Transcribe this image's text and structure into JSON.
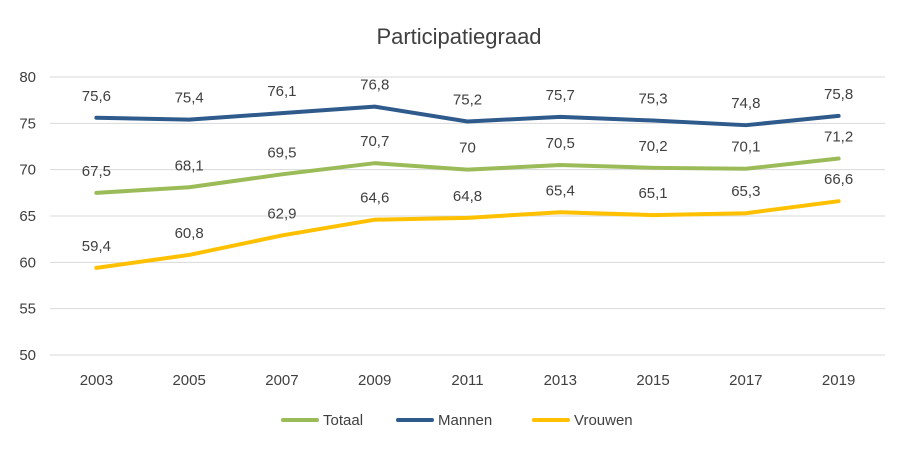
{
  "chart_data": {
    "type": "line",
    "title": "Participatiegraad",
    "xlabel": "",
    "ylabel": "",
    "categories": [
      "2003",
      "2005",
      "2007",
      "2009",
      "2011",
      "2013",
      "2015",
      "2017",
      "2019"
    ],
    "ylim": [
      50,
      80
    ],
    "yticks": [
      "50",
      "55",
      "60",
      "65",
      "70",
      "75",
      "80"
    ],
    "grid": true,
    "legend": "bottom",
    "series": [
      {
        "name": "Totaal",
        "color": "#9bbb59",
        "values": [
          67.5,
          68.1,
          69.5,
          70.7,
          70,
          70.5,
          70.2,
          70.1,
          71.2
        ],
        "labels": [
          "67,5",
          "68,1",
          "69,5",
          "70,7",
          "70",
          "70,5",
          "70,2",
          "70,1",
          "71,2"
        ]
      },
      {
        "name": "Mannen",
        "color": "#2f5a8c",
        "values": [
          75.6,
          75.4,
          76.1,
          76.8,
          75.2,
          75.7,
          75.3,
          74.8,
          75.8
        ],
        "labels": [
          "75,6",
          "75,4",
          "76,1",
          "76,8",
          "75,2",
          "75,7",
          "75,3",
          "74,8",
          "75,8"
        ]
      },
      {
        "name": "Vrouwen",
        "color": "#ffc000",
        "values": [
          59.4,
          60.8,
          62.9,
          64.6,
          64.8,
          65.4,
          65.1,
          65.3,
          66.6
        ],
        "labels": [
          "59,4",
          "60,8",
          "62,9",
          "64,6",
          "64,8",
          "65,4",
          "65,1",
          "65,3",
          "66,6"
        ]
      }
    ]
  }
}
